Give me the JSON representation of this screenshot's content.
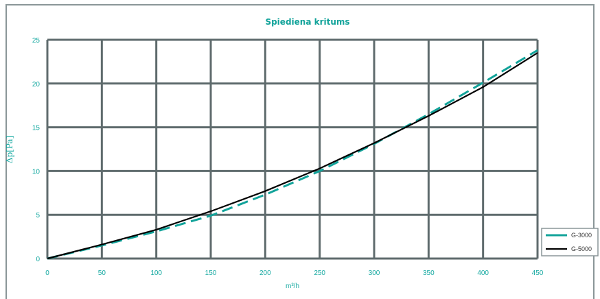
{
  "chart_data": {
    "type": "line",
    "title": "Spiediena kritums",
    "xlabel": "m³/h",
    "ylabel": "Δp[Pa]",
    "xlim": [
      0,
      450
    ],
    "ylim": [
      0,
      25
    ],
    "x_ticks": [
      0,
      50,
      100,
      150,
      200,
      250,
      300,
      350,
      400,
      450
    ],
    "y_ticks": [
      0,
      5,
      10,
      15,
      20,
      25
    ],
    "grid": true,
    "legend_position": "right",
    "series": [
      {
        "name": "G-3000",
        "style": "dashed",
        "color": "#12a39a",
        "x": [
          0,
          50,
          100,
          150,
          200,
          250,
          300,
          350,
          400,
          450
        ],
        "y": [
          0,
          1.5,
          3.1,
          4.9,
          7.3,
          10.0,
          13.1,
          16.5,
          20.1,
          23.8
        ]
      },
      {
        "name": "G-5000",
        "style": "solid",
        "color": "#000000",
        "x": [
          0,
          50,
          100,
          150,
          200,
          250,
          300,
          350,
          400,
          450
        ],
        "y": [
          0,
          1.6,
          3.3,
          5.4,
          7.7,
          10.3,
          13.2,
          16.3,
          19.6,
          23.5
        ]
      }
    ]
  }
}
